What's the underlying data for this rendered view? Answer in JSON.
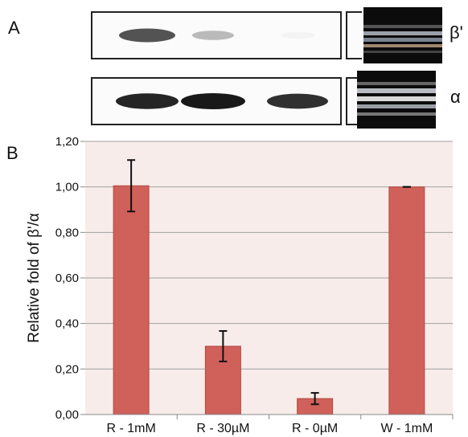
{
  "panels": {
    "a_label": "A",
    "b_label": "B"
  },
  "blot": {
    "rows": [
      {
        "label": "β'",
        "band_intensities": [
          0.75,
          0.3,
          0.05
        ]
      },
      {
        "label": "α",
        "band_intensities": [
          0.95,
          1.0,
          0.9
        ]
      }
    ]
  },
  "chart_data": {
    "type": "bar",
    "categories": [
      "R - 1mM",
      "R - 30µM",
      "R - 0µM",
      "W - 1mM"
    ],
    "series": [
      {
        "values": [
          1.005,
          0.3,
          0.07,
          1.0
        ],
        "errors": [
          0.113,
          0.067,
          0.025,
          0.0
        ]
      }
    ],
    "ylabel": "Relative fold of β'/α",
    "xlabel": "",
    "ylim": [
      0,
      1.2
    ],
    "yticks": [
      "0,00",
      "0,20",
      "0,40",
      "0,60",
      "0,80",
      "1,00",
      "1,20"
    ],
    "grid": true,
    "colors": {
      "bar": "#d0605a",
      "bar_edge": "#b54840",
      "plot_bg": "#f7ecea",
      "grid": "#a0a0a0"
    }
  }
}
